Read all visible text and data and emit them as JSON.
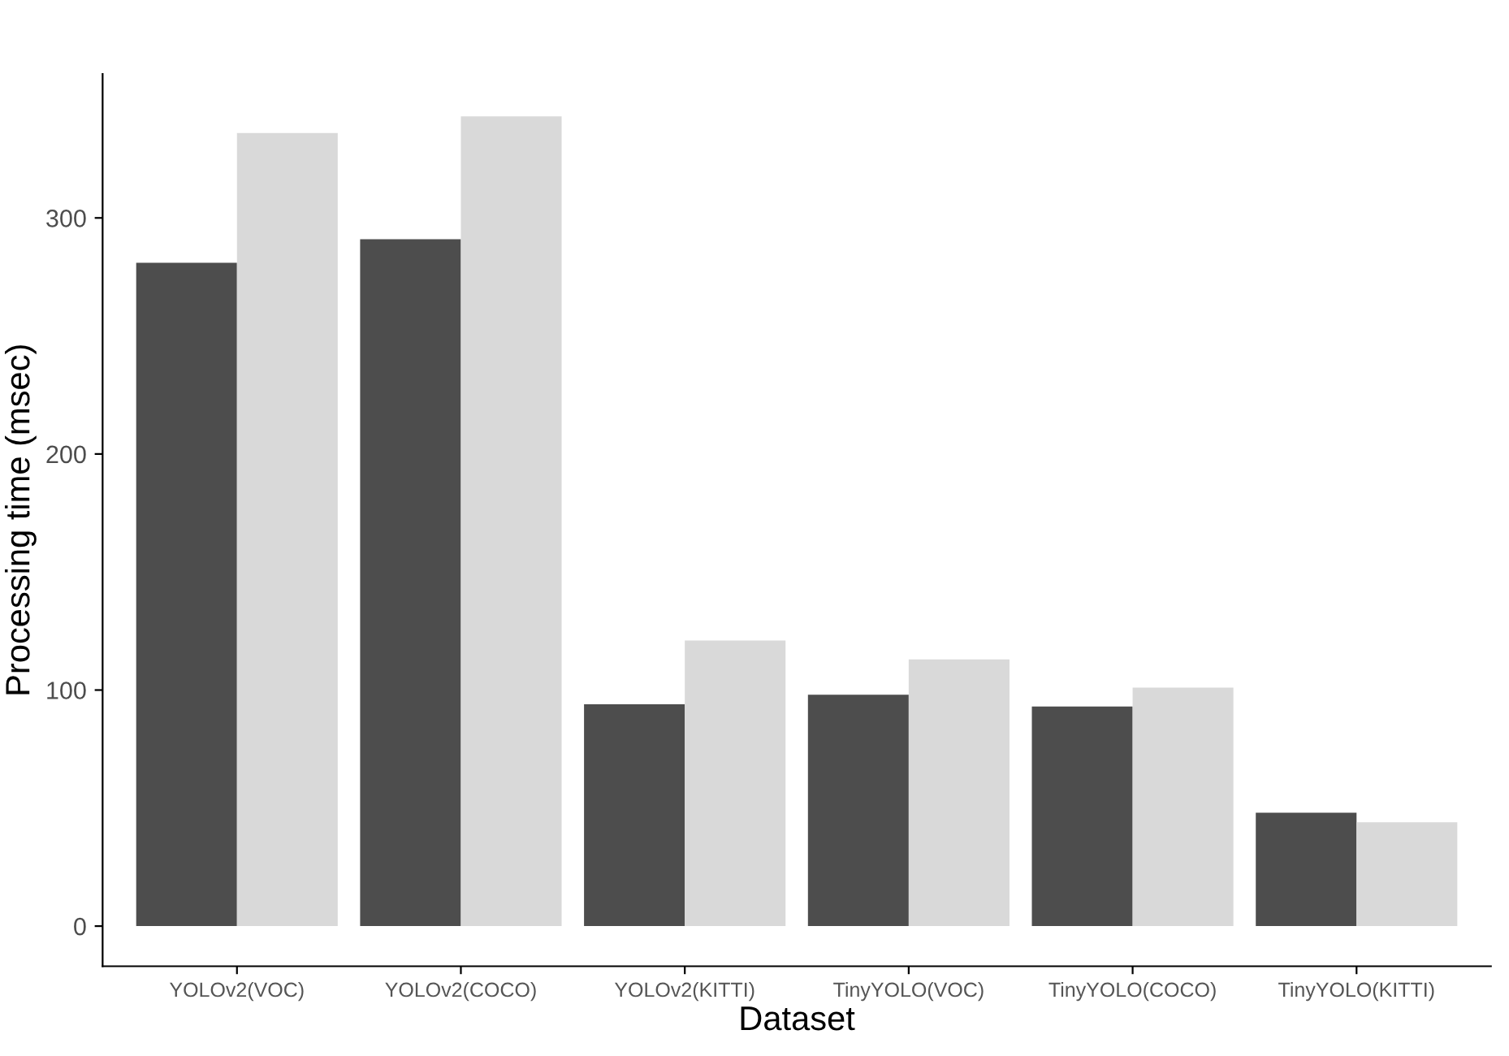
{
  "chart_data": {
    "type": "bar",
    "xlabel": "Dataset",
    "ylabel": "Processing time (msec)",
    "categories": [
      "YOLOv2(VOC)",
      "YOLOv2(COCO)",
      "YOLOv2(KITTI)",
      "TinyYOLO(VOC)",
      "TinyYOLO(COCO)",
      "TinyYOLO(KITTI)"
    ],
    "series": [
      {
        "color": "#4d4d4d",
        "values": [
          281,
          291,
          94,
          98,
          93,
          48
        ]
      },
      {
        "color": "#d9d9d9",
        "values": [
          336,
          343,
          121,
          113,
          101,
          44
        ]
      }
    ],
    "ylim": [
      -17,
      361
    ],
    "yticks": [
      0,
      100,
      200,
      300
    ],
    "grid": false
  }
}
